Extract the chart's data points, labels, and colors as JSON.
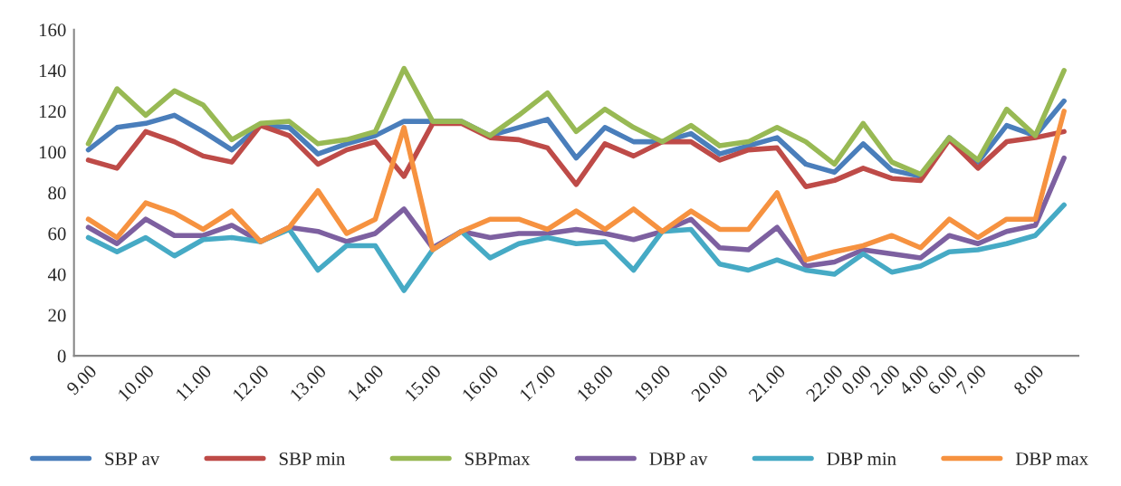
{
  "chart_data": {
    "type": "line",
    "categories": [
      "9.00",
      null,
      "10.00",
      null,
      "11.00",
      null,
      "12.00",
      null,
      "13.00",
      null,
      "14.00",
      null,
      "15.00",
      null,
      "16.00",
      null,
      "17.00",
      null,
      "18.00",
      null,
      "19.00",
      null,
      "20.00",
      null,
      "21.00",
      null,
      "22.00",
      "0.00",
      "2.00",
      "4.00",
      "6.00",
      "7.00",
      null,
      "8.00",
      null
    ],
    "series": [
      {
        "name": "SBP av",
        "color": "#4a7ebb",
        "values": [
          101,
          112,
          114,
          118,
          110,
          101,
          113,
          112,
          99,
          104,
          108,
          115,
          115,
          115,
          108,
          112,
          116,
          97,
          112,
          105,
          105,
          109,
          99,
          103,
          107,
          94,
          90,
          104,
          91,
          88,
          107,
          95,
          113,
          108,
          125
        ]
      },
      {
        "name": "SBP min",
        "color": "#be4b48",
        "values": [
          96,
          92,
          110,
          105,
          98,
          95,
          113,
          108,
          94,
          101,
          105,
          88,
          114,
          114,
          107,
          106,
          102,
          84,
          104,
          98,
          105,
          105,
          96,
          101,
          102,
          83,
          86,
          92,
          87,
          86,
          106,
          92,
          105,
          107,
          110
        ]
      },
      {
        "name": "SBPmax",
        "color": "#98b954",
        "values": [
          104,
          131,
          118,
          130,
          123,
          106,
          114,
          115,
          104,
          106,
          110,
          141,
          115,
          115,
          108,
          118,
          129,
          110,
          121,
          112,
          105,
          113,
          103,
          105,
          112,
          105,
          94,
          114,
          95,
          89,
          107,
          96,
          121,
          108,
          140
        ]
      },
      {
        "name": "DBP av",
        "color": "#7d60a0",
        "values": [
          63,
          55,
          67,
          59,
          59,
          64,
          56,
          63,
          61,
          56,
          60,
          72,
          53,
          61,
          58,
          60,
          60,
          62,
          60,
          57,
          61,
          67,
          53,
          52,
          63,
          44,
          46,
          52,
          50,
          48,
          59,
          55,
          61,
          64,
          97
        ]
      },
      {
        "name": "DBP min",
        "color": "#46aac5",
        "values": [
          58,
          51,
          58,
          49,
          57,
          58,
          56,
          62,
          42,
          54,
          54,
          32,
          52,
          61,
          48,
          55,
          58,
          55,
          56,
          42,
          61,
          62,
          45,
          42,
          47,
          42,
          40,
          50,
          41,
          44,
          51,
          52,
          55,
          59,
          74
        ]
      },
      {
        "name": "DBP max",
        "color": "#f69240",
        "values": [
          67,
          58,
          75,
          70,
          62,
          71,
          56,
          63,
          81,
          60,
          67,
          112,
          52,
          61,
          67,
          67,
          62,
          71,
          62,
          72,
          61,
          71,
          62,
          62,
          80,
          47,
          51,
          54,
          59,
          53,
          67,
          58,
          67,
          67,
          120
        ]
      }
    ],
    "ylim": [
      0,
      160
    ],
    "yticks": [
      0,
      20,
      40,
      60,
      80,
      100,
      120,
      140,
      160
    ],
    "grid": false,
    "legend": "bottom",
    "marker": "none",
    "line_style": "solid"
  }
}
